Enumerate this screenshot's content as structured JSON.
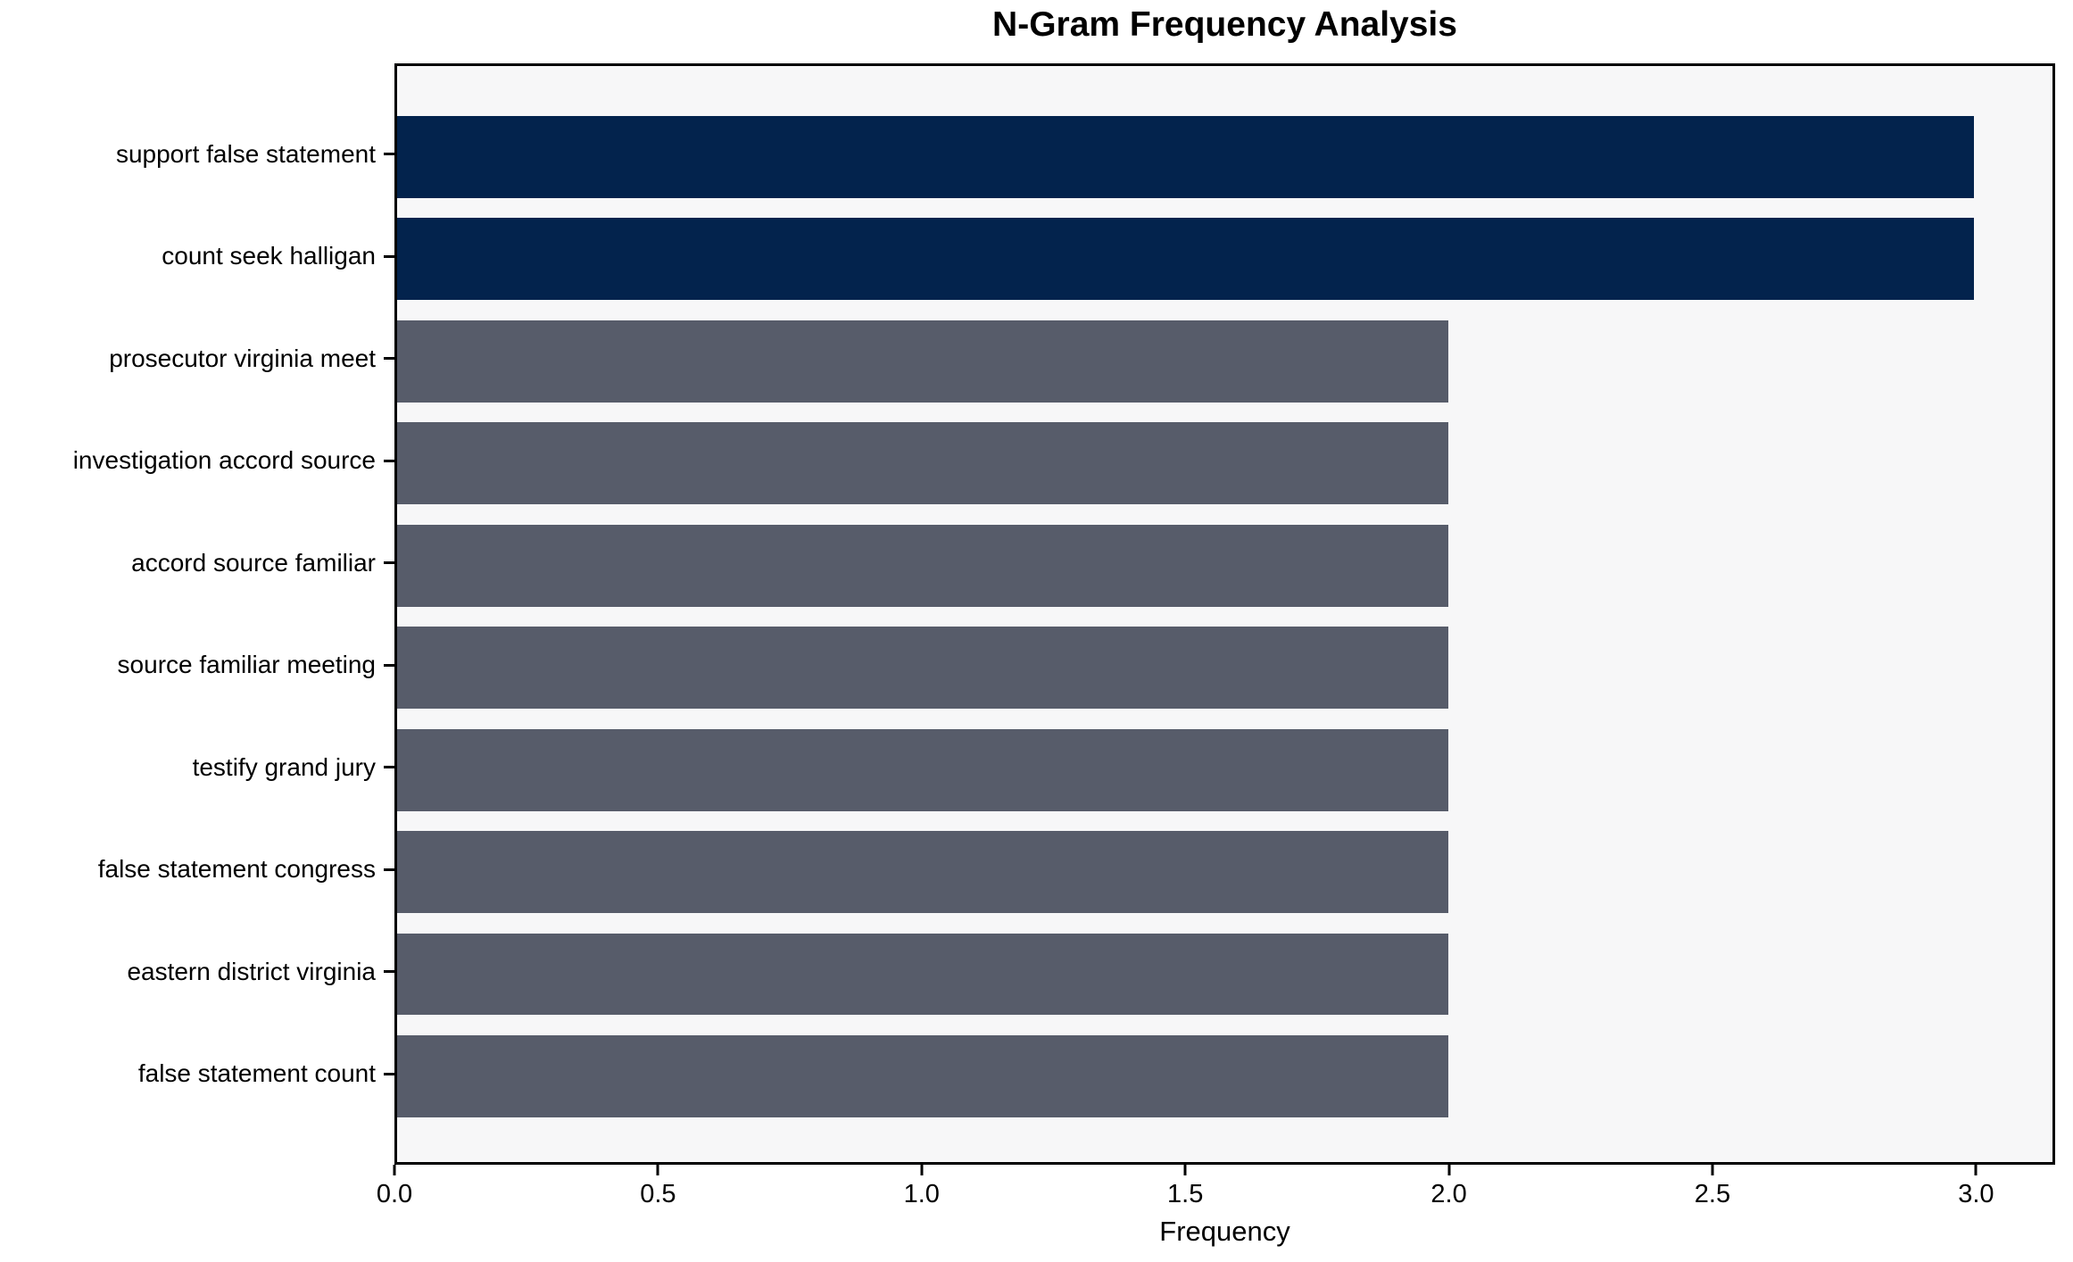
{
  "chart_data": {
    "type": "bar",
    "orientation": "horizontal",
    "title": "N-Gram Frequency Analysis",
    "xlabel": "Frequency",
    "ylabel": "",
    "categories": [
      "support false statement",
      "count seek halligan",
      "prosecutor virginia meet",
      "investigation accord source",
      "accord source familiar",
      "source familiar meeting",
      "testify grand jury",
      "false statement congress",
      "eastern district virginia",
      "false statement count"
    ],
    "values": [
      3,
      3,
      2,
      2,
      2,
      2,
      2,
      2,
      2,
      2
    ],
    "bar_colors": [
      "#03234d",
      "#03234d",
      "#575c6a",
      "#575c6a",
      "#575c6a",
      "#575c6a",
      "#575c6a",
      "#575c6a",
      "#575c6a",
      "#575c6a"
    ],
    "xlim": [
      0,
      3.15
    ],
    "xticks": [
      0.0,
      0.5,
      1.0,
      1.5,
      2.0,
      2.5,
      3.0
    ],
    "xtick_labels": [
      "0.0",
      "0.5",
      "1.0",
      "1.5",
      "2.0",
      "2.5",
      "3.0"
    ],
    "grid": false,
    "legend": null,
    "colors": {
      "highlight": "#03234d",
      "default_bar": "#575c6a",
      "plot_background": "#f7f7f8",
      "frame": "#000000"
    }
  }
}
